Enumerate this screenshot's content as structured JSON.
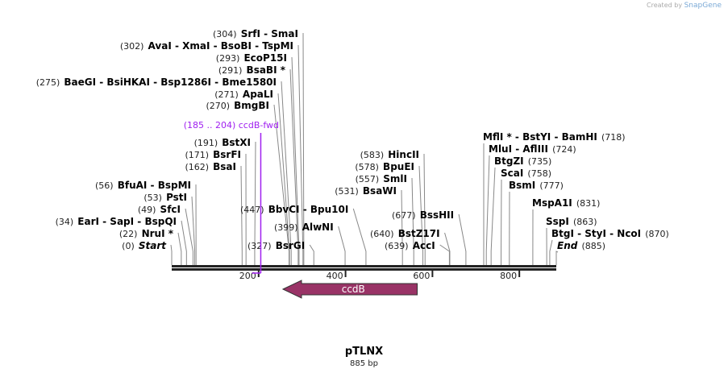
{
  "credit": {
    "prefix": "Created by",
    "brand": "SnapGene"
  },
  "map": {
    "name": "pTLNX",
    "length_label": "885 bp",
    "length_bp": 885
  },
  "ticks": [
    {
      "bp": 200,
      "label": "200"
    },
    {
      "bp": 400,
      "label": "400"
    },
    {
      "bp": 600,
      "label": "600"
    },
    {
      "bp": 800,
      "label": "800"
    }
  ],
  "feature": {
    "name": "ccdB",
    "start": 256,
    "end": 565,
    "direction": "reverse",
    "color": "#993366"
  },
  "primer": {
    "label": "(185 .. 204)  ccdB-fwd",
    "start": 185,
    "end": 204,
    "color": "#a020f0"
  },
  "sites": [
    {
      "num": "(304)",
      "names": "SrfI  - SmaI",
      "bp": 304
    },
    {
      "num": "(302)",
      "names": "AvaI  - XmaI  - BsoBI  - TspMI",
      "bp": 302
    },
    {
      "num": "(293)",
      "names": "EcoP15I",
      "bp": 293
    },
    {
      "num": "(291)",
      "names": "BsaBI *",
      "bp": 291
    },
    {
      "num": "(275)",
      "names": "BaeGI  - BsiHKAI  - Bsp1286I  - Bme1580I",
      "bp": 275
    },
    {
      "num": "(271)",
      "names": "ApaLI",
      "bp": 271
    },
    {
      "num": "(270)",
      "names": "BmgBI",
      "bp": 270
    },
    {
      "num": "(191)",
      "names": "BstXI",
      "bp": 191
    },
    {
      "num": "(171)",
      "names": "BsrFI",
      "bp": 171
    },
    {
      "num": "(162)",
      "names": "BsaI",
      "bp": 162
    },
    {
      "num": "(56)",
      "names": "BfuAI  - BspMI",
      "bp": 56
    },
    {
      "num": "(53)",
      "names": "PstI",
      "bp": 53
    },
    {
      "num": "(49)",
      "names": "SfcI",
      "bp": 49
    },
    {
      "num": "(34)",
      "names": "EarI  - SapI  - BspQI",
      "bp": 34
    },
    {
      "num": "(22)",
      "names": "NruI *",
      "bp": 22
    },
    {
      "num": "(0)",
      "names": "Start",
      "bp": 0,
      "italic": true
    },
    {
      "num": "(447)",
      "names": "BbvCI  - Bpu10I",
      "bp": 447
    },
    {
      "num": "(399)",
      "names": "AlwNI",
      "bp": 399
    },
    {
      "num": "(327)",
      "names": "BsrGI",
      "bp": 327
    },
    {
      "num": "(583)",
      "names": "HincII",
      "bp": 583
    },
    {
      "num": "(578)",
      "names": "BpuEI",
      "bp": 578
    },
    {
      "num": "(557)",
      "names": "SmlI",
      "bp": 557
    },
    {
      "num": "(531)",
      "names": "BsaWI",
      "bp": 531
    },
    {
      "num": "(677)",
      "names": "BssHII",
      "bp": 677
    },
    {
      "num": "(640)",
      "names": "BstZ17I",
      "bp": 640
    },
    {
      "num": "(639)",
      "names": "AccI",
      "bp": 639
    },
    {
      "num": "(718)",
      "names": "MflI *  - BstYI  - BamHI",
      "bp": 718
    },
    {
      "num": "(724)",
      "names": "MluI  - AflIII",
      "bp": 724
    },
    {
      "num": "(735)",
      "names": "BtgZI",
      "bp": 735
    },
    {
      "num": "(758)",
      "names": "ScaI",
      "bp": 758
    },
    {
      "num": "(777)",
      "names": "BsmI",
      "bp": 777
    },
    {
      "num": "(831)",
      "names": "MspA1I",
      "bp": 831
    },
    {
      "num": "(863)",
      "names": "SspI",
      "bp": 863
    },
    {
      "num": "(870)",
      "names": "BtgI  - StyI  - NcoI",
      "bp": 870
    },
    {
      "num": "(885)",
      "names": "End",
      "bp": 885,
      "italic": true
    }
  ]
}
